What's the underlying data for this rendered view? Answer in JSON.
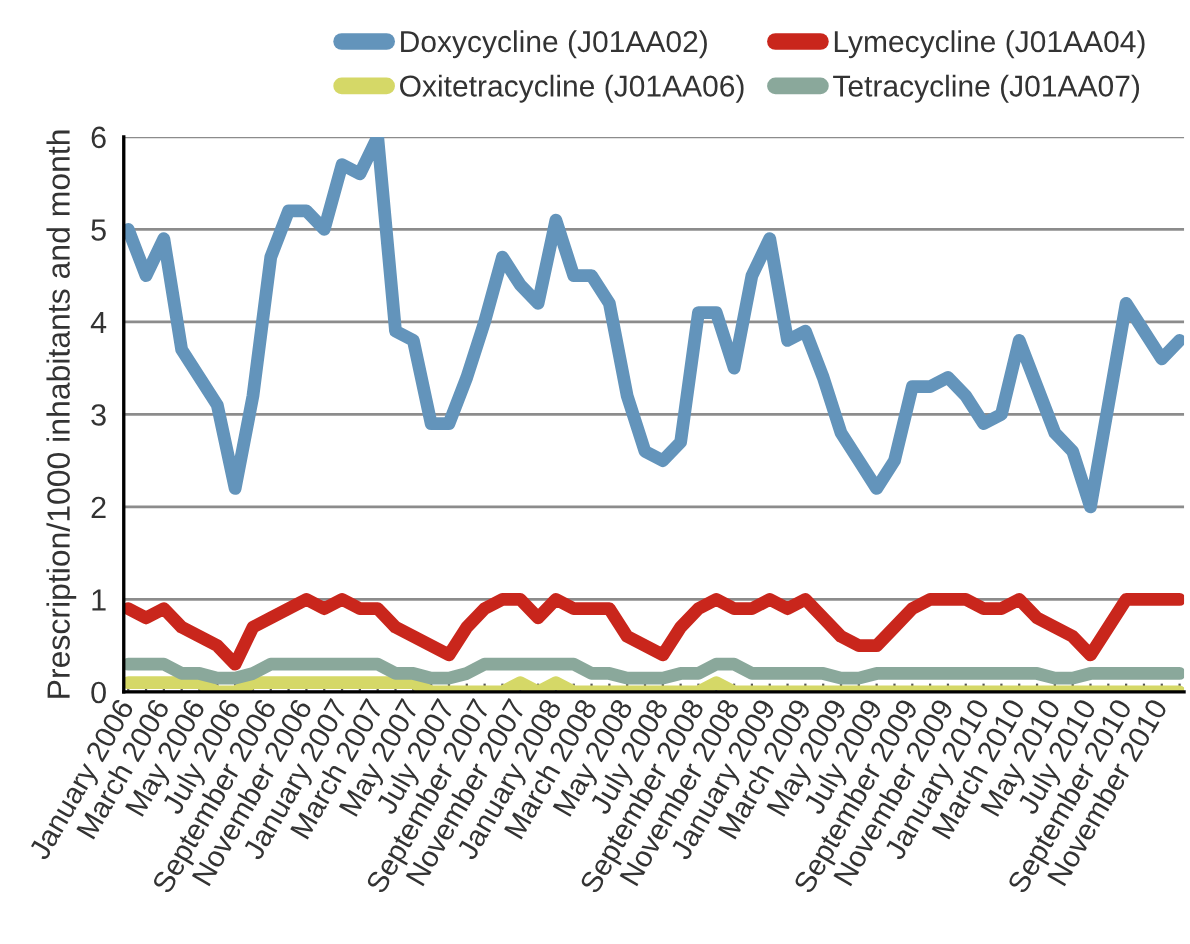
{
  "chart_data": {
    "type": "line",
    "ylabel": "Prescription/1000 inhabitants and month",
    "categories": [
      "January 2006",
      null,
      "March 2006",
      null,
      "May 2006",
      null,
      "July 2006",
      null,
      "September 2006",
      null,
      "November 2006",
      null,
      "January 2007",
      null,
      "March 2007",
      null,
      "May 2007",
      null,
      "July 2007",
      null,
      "September 2007",
      null,
      "November 2007",
      null,
      "January 2008",
      null,
      "March 2008",
      null,
      "May 2008",
      null,
      "July 2008",
      null,
      "September 2008",
      null,
      "November 2008",
      null,
      "January 2009",
      null,
      "March 2009",
      null,
      "May 2009",
      null,
      "July 2009",
      null,
      "September 2009",
      null,
      "November 2009",
      null,
      "January 2010",
      null,
      "March 2010",
      null,
      "May 2010",
      null,
      "July 2010",
      null,
      "September 2010",
      null,
      "November 2010",
      null
    ],
    "series": [
      {
        "name": "Doxycycline (J01AA02)",
        "color": "#6394bb",
        "values": [
          5.0,
          4.5,
          4.9,
          3.7,
          3.4,
          3.1,
          2.2,
          3.2,
          4.7,
          5.2,
          5.2,
          5.0,
          5.7,
          5.6,
          6.0,
          3.9,
          3.8,
          2.9,
          2.9,
          3.4,
          4.0,
          4.7,
          4.4,
          4.2,
          5.1,
          4.5,
          4.5,
          4.2,
          3.2,
          2.6,
          2.5,
          2.7,
          4.1,
          4.1,
          3.5,
          4.5,
          4.9,
          3.8,
          3.9,
          3.4,
          2.8,
          2.5,
          2.2,
          2.5,
          3.3,
          3.3,
          3.4,
          3.2,
          2.9,
          3.0,
          3.8,
          3.3,
          2.8,
          2.6,
          2.0,
          3.1,
          4.2,
          3.9,
          3.6,
          3.8
        ]
      },
      {
        "name": "Lymecycline (J01AA04)",
        "color": "#c9261c",
        "values": [
          0.9,
          0.8,
          0.9,
          0.7,
          0.6,
          0.5,
          0.3,
          0.7,
          0.8,
          0.9,
          1.0,
          0.9,
          1.0,
          0.9,
          0.9,
          0.7,
          0.6,
          0.5,
          0.4,
          0.7,
          0.9,
          1.0,
          1.0,
          0.8,
          1.0,
          0.9,
          0.9,
          0.9,
          0.6,
          0.5,
          0.4,
          0.7,
          0.9,
          1.0,
          0.9,
          0.9,
          1.0,
          0.9,
          1.0,
          0.8,
          0.6,
          0.5,
          0.5,
          0.7,
          0.9,
          1.0,
          1.0,
          1.0,
          0.9,
          0.9,
          1.0,
          0.8,
          0.7,
          0.6,
          0.4,
          0.7,
          1.0,
          1.0,
          1.0,
          1.0
        ]
      },
      {
        "name": "Oxitetracycline (J01AA06)",
        "color": "#d5d867",
        "values": [
          0.1,
          0.1,
          0.1,
          0.1,
          0.1,
          0.0,
          0.0,
          0.1,
          0.1,
          0.1,
          0.1,
          0.1,
          0.1,
          0.1,
          0.1,
          0.1,
          0.1,
          0.0,
          0.0,
          0.0,
          0.0,
          0.0,
          0.1,
          0.0,
          0.1,
          0.0,
          0.0,
          0.0,
          0.0,
          0.0,
          0.0,
          0.0,
          0.0,
          0.1,
          0.0,
          0.0,
          0.0,
          0.0,
          0.0,
          0.0,
          0.0,
          0.0,
          0.0,
          0.0,
          0.0,
          0.0,
          0.0,
          0.0,
          0.0,
          0.0,
          0.0,
          0.0,
          0.0,
          0.0,
          0.0,
          0.0,
          0.0,
          0.0,
          0.0,
          0.0
        ]
      },
      {
        "name": "Tetracycline (J01AA07)",
        "color": "#8aa89b",
        "values": [
          0.3,
          0.3,
          0.3,
          0.2,
          0.2,
          0.15,
          0.15,
          0.2,
          0.3,
          0.3,
          0.3,
          0.3,
          0.3,
          0.3,
          0.3,
          0.2,
          0.2,
          0.15,
          0.15,
          0.2,
          0.3,
          0.3,
          0.3,
          0.3,
          0.3,
          0.3,
          0.2,
          0.2,
          0.15,
          0.15,
          0.15,
          0.2,
          0.2,
          0.3,
          0.3,
          0.2,
          0.2,
          0.2,
          0.2,
          0.2,
          0.15,
          0.15,
          0.2,
          0.2,
          0.2,
          0.2,
          0.2,
          0.2,
          0.2,
          0.2,
          0.2,
          0.2,
          0.15,
          0.15,
          0.2,
          0.2,
          0.2,
          0.2,
          0.2,
          0.2
        ]
      }
    ],
    "ylim": [
      0,
      6
    ],
    "yticks": [
      0,
      1,
      2,
      3,
      4,
      5,
      6
    ],
    "grid": "y",
    "legend": "top",
    "marker": "none",
    "line_style": "solid"
  }
}
